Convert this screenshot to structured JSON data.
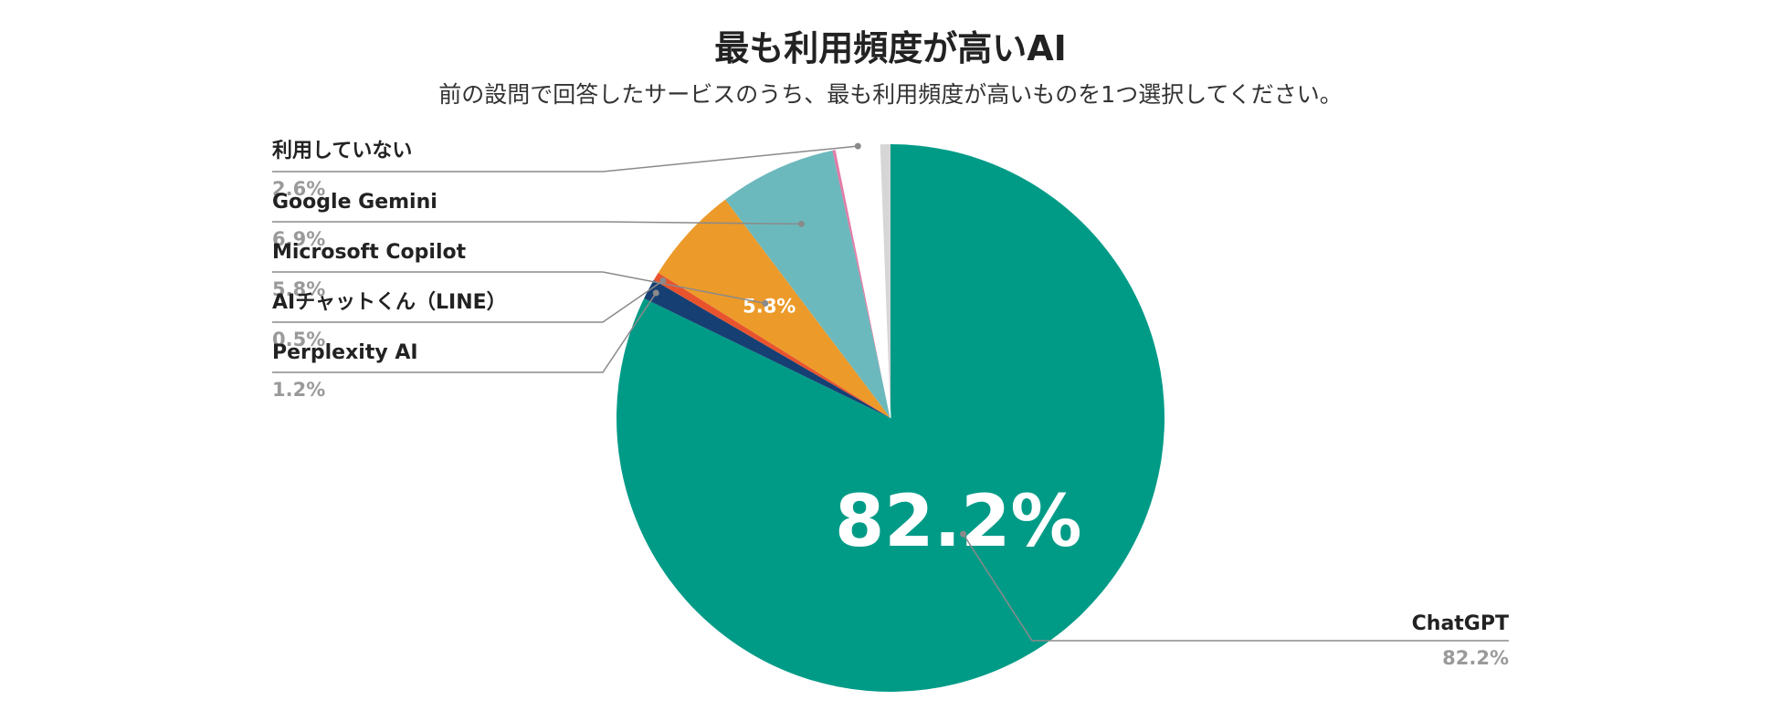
{
  "chart_data": {
    "type": "pie",
    "title": "最も利用頻度が高いAI",
    "subtitle": "前の設問で回答したサービスのうち、最も利用頻度が高いものを1つ選択してください。",
    "slices": [
      {
        "label": "ChatGPT",
        "value": 82.2,
        "display": "82.2%",
        "color": "#009B87",
        "inside_label": "82.2%"
      },
      {
        "label": "Perplexity AI",
        "value": 1.2,
        "display": "1.2%",
        "color": "#163F73"
      },
      {
        "label": "AIチャットくん（LINE）",
        "value": 0.5,
        "display": "0.5%",
        "color": "#E8532E"
      },
      {
        "label": "Microsoft Copilot",
        "value": 5.8,
        "display": "5.8%",
        "color": "#EC9A2A",
        "inside_label": "5.8%"
      },
      {
        "label": "Google Gemini",
        "value": 6.9,
        "display": "6.9%",
        "color": "#6CB9BD"
      },
      {
        "label": "",
        "value": 0.2,
        "display": "",
        "color": "#E27AA6"
      },
      {
        "label": "利用していない",
        "value": 2.6,
        "display": "2.6%",
        "color": "#FFFFFF"
      },
      {
        "label": "",
        "value": 0.6,
        "display": "",
        "color": "#D6D6D6"
      }
    ],
    "legend": "none"
  }
}
